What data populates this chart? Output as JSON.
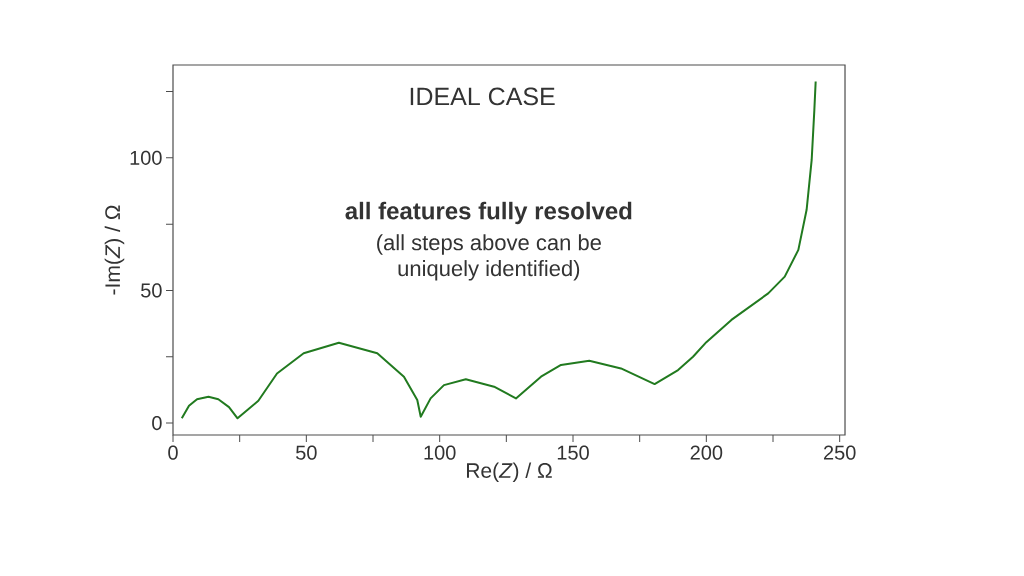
{
  "chart_data": {
    "type": "line",
    "title": "IDEAL CASE",
    "xlabel": "Re(*Z*) / Ω",
    "ylabel": "-Im(*Z*) / Ω",
    "annotations": [
      "all features fully resolved",
      "(all steps above can be",
      "uniquely identified)"
    ],
    "xlim": [
      0,
      252
    ],
    "ylim": [
      -4.5,
      135
    ],
    "xticks": [
      0,
      {
        "value": 25,
        "label": null
      },
      50,
      {
        "value": 75,
        "label": null
      },
      100,
      {
        "value": 125,
        "label": null
      },
      150,
      {
        "value": 175,
        "label": null
      },
      200,
      {
        "value": 225,
        "label": null
      },
      250
    ],
    "yticks": [
      0,
      {
        "value": 25,
        "label": null
      },
      50,
      {
        "value": 75,
        "label": null
      },
      100,
      {
        "value": 125,
        "label": null
      }
    ],
    "line_style": "solid",
    "marker": "none",
    "series": [
      {
        "color": "#217a1f",
        "x": [
          3.3,
          6,
          9,
          13.3,
          17,
          21,
          24.2,
          28,
          32,
          39,
          49,
          62.2,
          76.6,
          86.6,
          91.6,
          92.9,
          96.6,
          101.6,
          109.8,
          120.4,
          128.6,
          138,
          145.5,
          156.1,
          168,
          180.6,
          189.4,
          195,
          200,
          209.4,
          223.2,
          229.4,
          234.5,
          237.6,
          239.5,
          240.5,
          241
        ],
        "values": [
          1.8,
          6.5,
          9.0,
          9.9,
          9.0,
          6.0,
          1.8,
          5.0,
          8.4,
          18.7,
          26.3,
          30.3,
          26.3,
          17.5,
          8.7,
          2.4,
          9.3,
          14.3,
          16.5,
          13.7,
          9.3,
          17.5,
          21.9,
          23.5,
          20.6,
          14.7,
          20.0,
          25.0,
          30.5,
          38.9,
          48.9,
          55.2,
          65.3,
          80.4,
          99.2,
          118,
          128.8
        ]
      }
    ]
  }
}
